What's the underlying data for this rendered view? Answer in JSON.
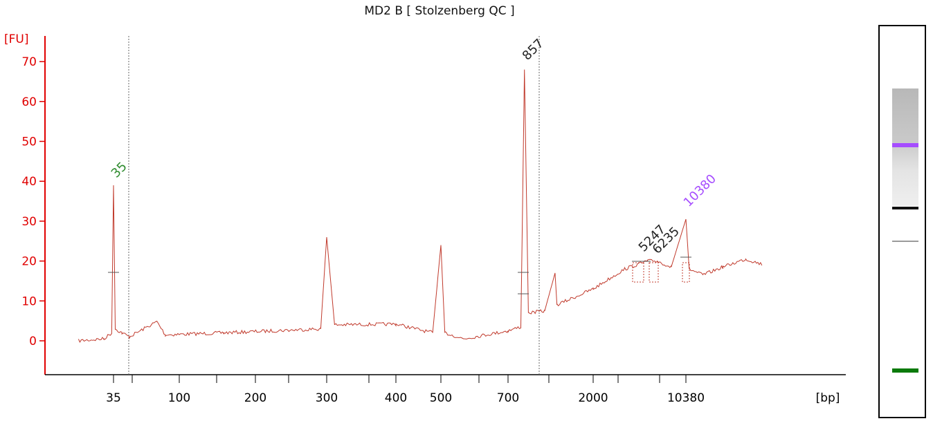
{
  "chart_data": {
    "type": "line",
    "title": "MD2 B  [ Stolzenberg QC ]",
    "ylabel": "[FU]",
    "xlabel": "[bp]",
    "ylim": [
      -8,
      75
    ],
    "yticks": [
      0,
      10,
      20,
      30,
      40,
      50,
      60,
      70
    ],
    "xtick_labels": [
      "35",
      "100",
      "200",
      "300",
      "400",
      "500",
      "700",
      "2000",
      "10380"
    ],
    "grid": false,
    "series_color": "#c0392b",
    "axis_color": "#e00000",
    "peak_labels": [
      {
        "text": "35",
        "color": "#2e8b2e"
      },
      {
        "text": "857",
        "color": "#222222"
      },
      {
        "text": "5247",
        "color": "#222222"
      },
      {
        "text": "6235",
        "color": "#222222"
      },
      {
        "text": "10380",
        "color": "#a64dff"
      }
    ],
    "trace": {
      "x_ticks": [
        35,
        100,
        200,
        300,
        400,
        500,
        700,
        2000,
        10380
      ],
      "points": [
        {
          "x": 20,
          "y": 0
        },
        {
          "x": 30,
          "y": 0.5
        },
        {
          "x": 34,
          "y": 2
        },
        {
          "x": 35,
          "y": 39
        },
        {
          "x": 36,
          "y": 3
        },
        {
          "x": 40,
          "y": 2
        },
        {
          "x": 45,
          "y": 1
        },
        {
          "x": 70,
          "y": 4.8
        },
        {
          "x": 80,
          "y": 1.5
        },
        {
          "x": 150,
          "y": 2
        },
        {
          "x": 290,
          "y": 3
        },
        {
          "x": 300,
          "y": 26
        },
        {
          "x": 310,
          "y": 4
        },
        {
          "x": 400,
          "y": 4.2
        },
        {
          "x": 480,
          "y": 2
        },
        {
          "x": 500,
          "y": 24
        },
        {
          "x": 510,
          "y": 2
        },
        {
          "x": 560,
          "y": 0.5
        },
        {
          "x": 700,
          "y": 2.5
        },
        {
          "x": 820,
          "y": 3.5
        },
        {
          "x": 857,
          "y": 68
        },
        {
          "x": 900,
          "y": 7
        },
        {
          "x": 1100,
          "y": 7.5
        },
        {
          "x": 1250,
          "y": 17
        },
        {
          "x": 1280,
          "y": 9
        },
        {
          "x": 2000,
          "y": 13
        },
        {
          "x": 3500,
          "y": 18
        },
        {
          "x": 5247,
          "y": 20
        },
        {
          "x": 6235,
          "y": 20
        },
        {
          "x": 8000,
          "y": 18.5
        },
        {
          "x": 10380,
          "y": 30.5
        },
        {
          "x": 11000,
          "y": 18
        },
        {
          "x": 14000,
          "y": 16.5
        },
        {
          "x": 20000,
          "y": 18.5
        },
        {
          "x": 30000,
          "y": 20.5
        },
        {
          "x": 40000,
          "y": 19.2
        }
      ]
    }
  },
  "gel": {
    "marker_colors": [
      "#a64dff",
      "#0b7a0b"
    ],
    "band_color": "#111111"
  }
}
